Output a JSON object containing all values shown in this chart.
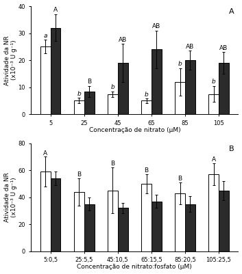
{
  "panel_A": {
    "categories": [
      "5",
      "25",
      "45",
      "65",
      "85",
      "105"
    ],
    "white_bars": [
      25,
      5,
      7.5,
      5,
      12,
      7.5
    ],
    "black_bars": [
      32,
      8.5,
      19,
      24,
      20,
      19
    ],
    "white_errors": [
      2.5,
      1,
      1,
      0.8,
      5,
      3
    ],
    "black_errors": [
      5,
      2,
      7,
      7,
      3.5,
      4
    ],
    "white_labels": [
      "a",
      "b",
      "b",
      "b",
      "b",
      "b"
    ],
    "black_labels": [
      "A",
      "B",
      "AB",
      "AB",
      "AB",
      "AB"
    ],
    "ylabel": "Atividade da NR\n(x10⁻³ U g⁻¹)",
    "xlabel": "Concentração de nitrato (μM)",
    "ylim": [
      0,
      40
    ],
    "yticks": [
      0,
      10,
      20,
      30,
      40
    ],
    "panel_label": "A"
  },
  "panel_B": {
    "categories": [
      "5:0,5",
      "25:5,5",
      "45:10,5",
      "65:15,5",
      "85:20,5",
      "105:25,5"
    ],
    "white_bars": [
      59,
      44,
      45,
      50,
      43,
      57
    ],
    "black_bars": [
      54,
      35,
      32,
      37,
      35,
      45
    ],
    "white_errors": [
      11,
      10,
      17,
      7,
      8,
      8
    ],
    "black_errors": [
      5,
      5,
      4,
      5,
      6,
      7
    ],
    "white_labels": [
      "A",
      "B",
      "B",
      "B",
      "B",
      "A"
    ],
    "black_labels": [
      "",
      "",
      "",
      "",
      "",
      ""
    ],
    "ylabel": "Atividade da NR\n(x10⁻³ U g⁻¹)",
    "xlabel": "Concentração de nitrato:fosfato (μM)",
    "ylim": [
      0,
      80
    ],
    "yticks": [
      0,
      20,
      40,
      60,
      80
    ],
    "panel_label": "B"
  },
  "bar_width": 0.3,
  "white_color": "#ffffff",
  "black_color": "#2b2b2b",
  "edge_color": "#000000",
  "tick_font_size": 6,
  "label_font_size": 6.5,
  "ylabel_font_size": 6.5,
  "xlabel_font_size": 6.5,
  "panel_label_font_size": 8
}
